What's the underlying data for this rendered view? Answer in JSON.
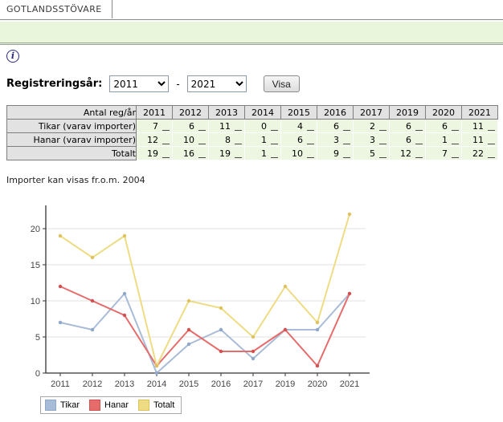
{
  "tab": {
    "label": "GOTLANDSSTÖVARE"
  },
  "info_icon": {
    "glyph": "i"
  },
  "filter": {
    "label": "Registreringsår:",
    "from_year": "2011",
    "to_year": "2021",
    "separator": "-",
    "submit_label": "Visa"
  },
  "table": {
    "corner_label": "Antal reg/år",
    "years": [
      "2011",
      "2012",
      "2013",
      "2014",
      "2015",
      "2016",
      "2017",
      "2019",
      "2020",
      "2021"
    ],
    "rows": [
      {
        "label": "Tikar (varav importer)",
        "values": [
          7,
          6,
          11,
          0,
          4,
          6,
          2,
          6,
          6,
          11
        ]
      },
      {
        "label": "Hanar (varav importer)",
        "values": [
          12,
          10,
          8,
          1,
          6,
          3,
          3,
          6,
          1,
          11
        ]
      },
      {
        "label": "Totalt",
        "values": [
          19,
          16,
          19,
          1,
          10,
          9,
          5,
          12,
          7,
          22
        ]
      }
    ]
  },
  "note": "Importer kan visas fr.o.m. 2004",
  "chart_data": {
    "type": "line",
    "title": "",
    "xlabel": "",
    "ylabel": "",
    "categories": [
      "2011",
      "2012",
      "2013",
      "2014",
      "2015",
      "2016",
      "2017",
      "2019",
      "2020",
      "2021"
    ],
    "series": [
      {
        "name": "Tikar",
        "values": [
          7,
          6,
          11,
          0,
          4,
          6,
          2,
          6,
          6,
          11
        ],
        "color": "#a9bcd7",
        "marker_color": "#8fa8c8"
      },
      {
        "name": "Hanar",
        "values": [
          12,
          10,
          8,
          1,
          6,
          3,
          3,
          6,
          1,
          11
        ],
        "color": "#e66b6b",
        "marker_color": "#d65050"
      },
      {
        "name": "Totalt",
        "values": [
          19,
          16,
          19,
          1,
          10,
          9,
          5,
          12,
          7,
          22
        ],
        "color": "#eedc85",
        "marker_color": "#ddc25e"
      }
    ],
    "ylim": [
      0,
      23
    ],
    "yticks": [
      0,
      5,
      10,
      15,
      20
    ],
    "grid": true,
    "legend_position": "bottom-left",
    "grid_color": "#e2e2e2",
    "axis_color": "#333333",
    "tick_label_color": "#444444"
  }
}
